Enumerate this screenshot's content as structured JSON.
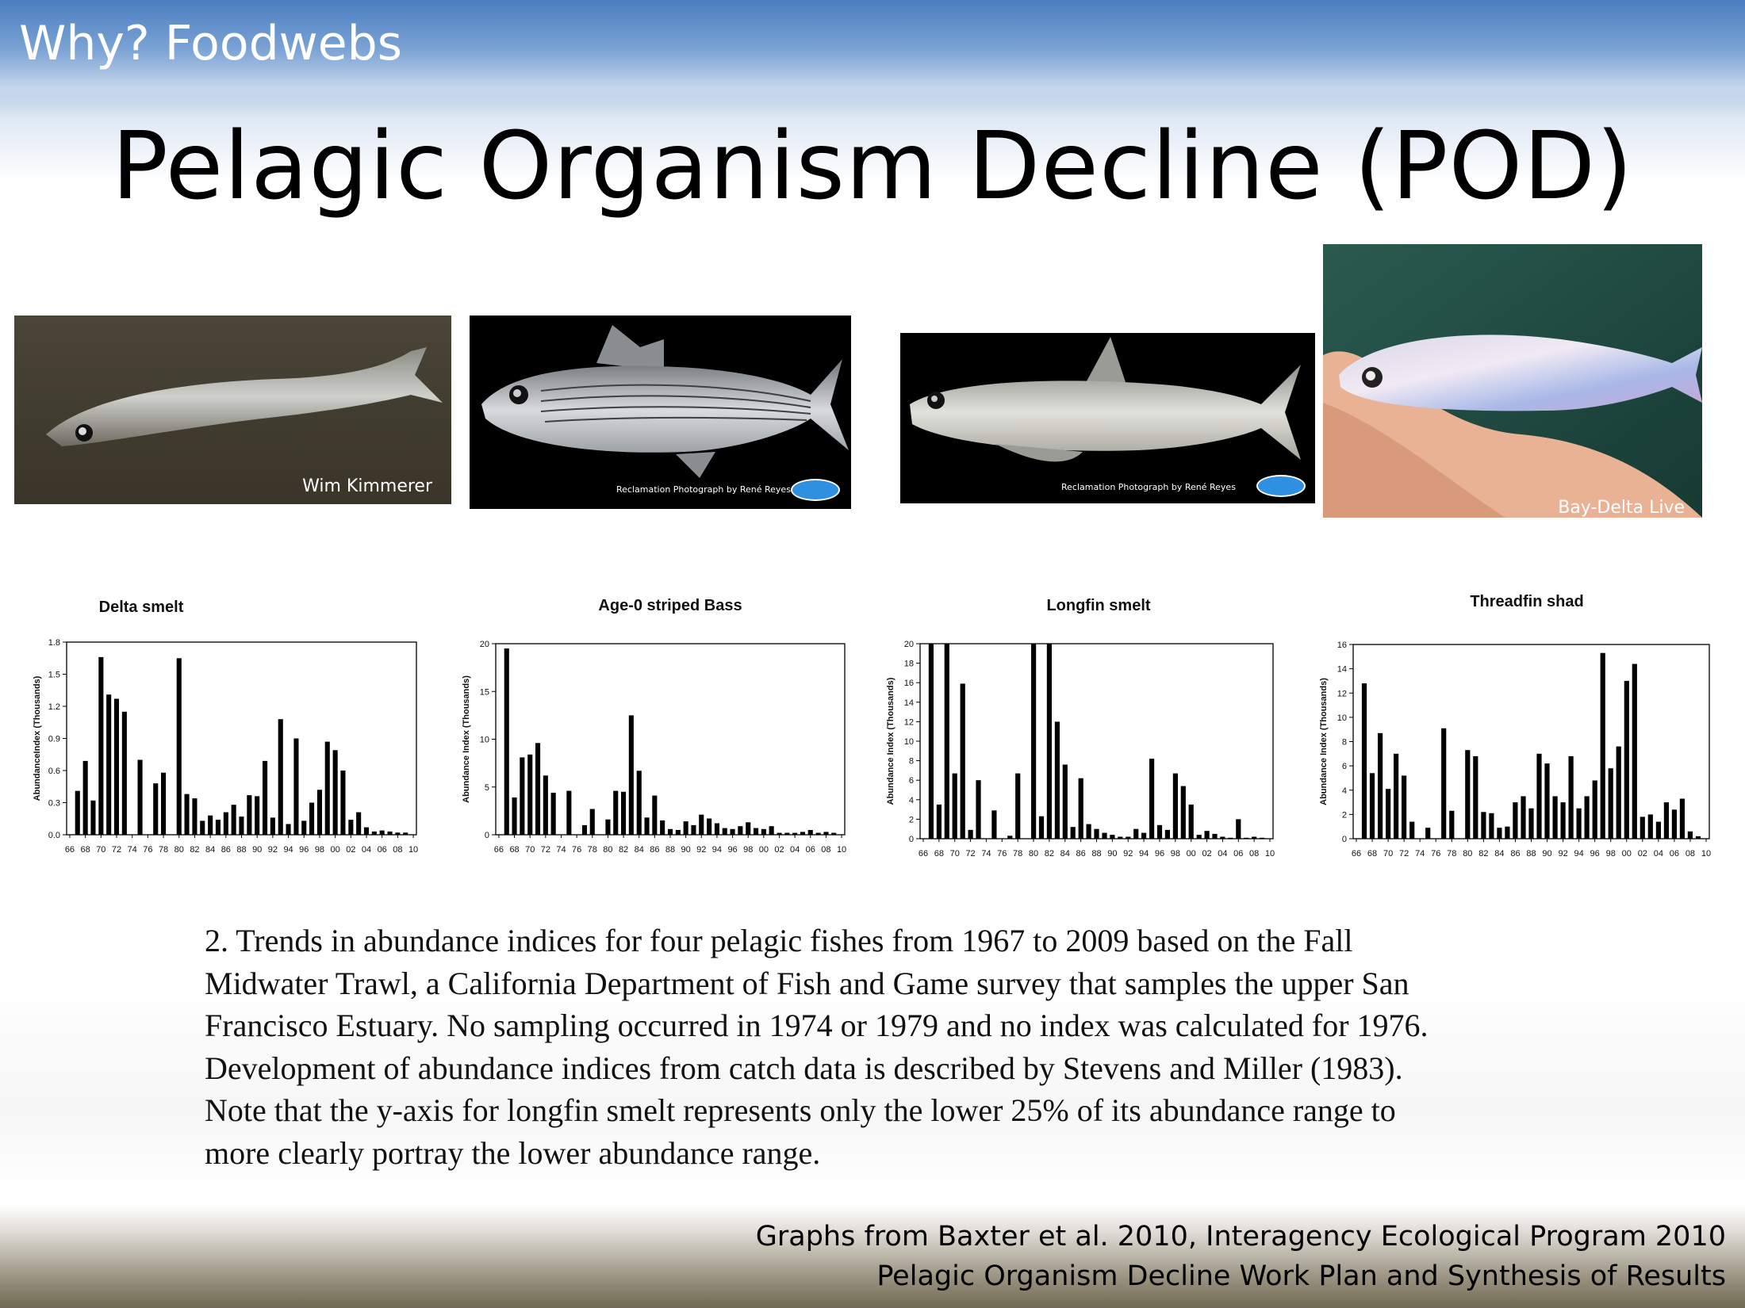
{
  "slide": {
    "section_title": "Why? Foodwebs",
    "main_title": "Pelagic Organism Decline (POD)"
  },
  "photos": [
    {
      "name": "delta-smelt-photo",
      "credit": "Wim Kimmerer",
      "background": "#3f3a30"
    },
    {
      "name": "striped-bass-photo",
      "credit": "Reclamation Photograph by René Reyes",
      "background": "#000000"
    },
    {
      "name": "longfin-smelt-photo",
      "credit": "Reclamation Photograph by René Reyes",
      "background": "#000000"
    },
    {
      "name": "threadfin-shad-photo",
      "credit": "Bay-Delta Live",
      "background": "#1e4a40"
    }
  ],
  "chart_data": [
    {
      "type": "bar",
      "title": "Delta smelt",
      "ylabel": "AbundanceIndex (Thousands)",
      "ylim": [
        0,
        1.8
      ],
      "yticks": [
        0.0,
        0.3,
        0.6,
        0.9,
        1.2,
        1.5,
        1.8
      ],
      "ytick_labels": [
        "0.0",
        "0.3",
        "0.6",
        "0.9",
        "1.2",
        "1.5",
        "1.8"
      ],
      "xtick_labels": [
        "66",
        "68",
        "70",
        "72",
        "74",
        "76",
        "78",
        "80",
        "82",
        "84",
        "86",
        "88",
        "90",
        "92",
        "94",
        "96",
        "98",
        "00",
        "02",
        "04",
        "06",
        "08",
        "10"
      ],
      "x": [
        1967,
        1968,
        1969,
        1970,
        1971,
        1972,
        1973,
        1974,
        1975,
        1976,
        1977,
        1978,
        1979,
        1980,
        1981,
        1982,
        1983,
        1984,
        1985,
        1986,
        1987,
        1988,
        1989,
        1990,
        1991,
        1992,
        1993,
        1994,
        1995,
        1996,
        1997,
        1998,
        1999,
        2000,
        2001,
        2002,
        2003,
        2004,
        2005,
        2006,
        2007,
        2008,
        2009
      ],
      "values": [
        0.41,
        0.69,
        0.32,
        1.66,
        1.31,
        1.27,
        1.15,
        0,
        0.7,
        0,
        0.48,
        0.58,
        0,
        1.65,
        0.38,
        0.34,
        0.13,
        0.18,
        0.14,
        0.21,
        0.28,
        0.17,
        0.37,
        0.36,
        0.69,
        0.16,
        1.08,
        0.1,
        0.9,
        0.13,
        0.3,
        0.42,
        0.87,
        0.79,
        0.6,
        0.14,
        0.21,
        0.07,
        0.03,
        0.04,
        0.03,
        0.02,
        0.02
      ]
    },
    {
      "type": "bar",
      "title": "Age-0 striped Bass",
      "ylabel": "Abundance Index (Thousands)",
      "ylim": [
        0,
        20
      ],
      "yticks": [
        0,
        5,
        10,
        15,
        20
      ],
      "ytick_labels": [
        "0",
        "5",
        "10",
        "15",
        "20"
      ],
      "xtick_labels": [
        "66",
        "68",
        "70",
        "72",
        "74",
        "76",
        "78",
        "80",
        "82",
        "84",
        "86",
        "88",
        "90",
        "92",
        "94",
        "96",
        "98",
        "00",
        "02",
        "04",
        "06",
        "08",
        "10"
      ],
      "x": [
        1967,
        1968,
        1969,
        1970,
        1971,
        1972,
        1973,
        1974,
        1975,
        1976,
        1977,
        1978,
        1979,
        1980,
        1981,
        1982,
        1983,
        1984,
        1985,
        1986,
        1987,
        1988,
        1989,
        1990,
        1991,
        1992,
        1993,
        1994,
        1995,
        1996,
        1997,
        1998,
        1999,
        2000,
        2001,
        2002,
        2003,
        2004,
        2005,
        2006,
        2007,
        2008,
        2009
      ],
      "values": [
        19.5,
        3.9,
        8.1,
        8.4,
        9.6,
        6.2,
        4.4,
        0,
        4.6,
        0,
        1.0,
        2.7,
        0,
        1.6,
        4.6,
        4.5,
        12.5,
        6.7,
        1.8,
        4.1,
        1.5,
        0.6,
        0.5,
        1.4,
        1.0,
        2.1,
        1.7,
        1.2,
        0.7,
        0.6,
        0.9,
        1.3,
        0.7,
        0.6,
        0.9,
        0.2,
        0.2,
        0.2,
        0.3,
        0.5,
        0.2,
        0.3,
        0.2
      ]
    },
    {
      "type": "bar",
      "title": "Longfin smelt",
      "ylabel": "Abundance Index (Thousands)",
      "ylim": [
        0,
        20
      ],
      "yticks": [
        0,
        2,
        4,
        6,
        8,
        10,
        12,
        14,
        16,
        18,
        20
      ],
      "ytick_labels": [
        "0",
        "2",
        "4",
        "6",
        "8",
        "10",
        "12",
        "14",
        "16",
        "18",
        "20"
      ],
      "xtick_labels": [
        "66",
        "68",
        "70",
        "72",
        "74",
        "76",
        "78",
        "80",
        "82",
        "84",
        "86",
        "88",
        "90",
        "92",
        "94",
        "96",
        "98",
        "00",
        "02",
        "04",
        "06",
        "08",
        "10"
      ],
      "x": [
        1967,
        1968,
        1969,
        1970,
        1971,
        1972,
        1973,
        1974,
        1975,
        1976,
        1977,
        1978,
        1979,
        1980,
        1981,
        1982,
        1983,
        1984,
        1985,
        1986,
        1987,
        1988,
        1989,
        1990,
        1991,
        1992,
        1993,
        1994,
        1995,
        1996,
        1997,
        1998,
        1999,
        2000,
        2001,
        2002,
        2003,
        2004,
        2005,
        2006,
        2007,
        2008,
        2009
      ],
      "values": [
        20,
        3.5,
        20,
        6.7,
        15.9,
        0.9,
        6.0,
        0,
        2.9,
        0,
        0.3,
        6.7,
        0,
        20,
        2.3,
        20,
        12.0,
        7.6,
        1.2,
        6.2,
        1.5,
        1.0,
        0.6,
        0.4,
        0.2,
        0.2,
        1.0,
        0.6,
        8.2,
        1.4,
        0.9,
        6.7,
        5.4,
        3.5,
        0.4,
        0.8,
        0.5,
        0.2,
        0.1,
        2.0,
        0.1,
        0.2,
        0.1
      ]
    },
    {
      "type": "bar",
      "title": "Threadfin shad",
      "ylabel": "Abundance Index (Thousands)",
      "ylim": [
        0,
        16
      ],
      "yticks": [
        0,
        2,
        4,
        6,
        8,
        10,
        12,
        14,
        16
      ],
      "ytick_labels": [
        "0",
        "2",
        "4",
        "6",
        "8",
        "10",
        "12",
        "14",
        "16"
      ],
      "xtick_labels": [
        "66",
        "68",
        "70",
        "72",
        "74",
        "76",
        "78",
        "80",
        "82",
        "84",
        "86",
        "88",
        "90",
        "92",
        "94",
        "96",
        "98",
        "00",
        "02",
        "04",
        "06",
        "08",
        "10"
      ],
      "x": [
        1967,
        1968,
        1969,
        1970,
        1971,
        1972,
        1973,
        1974,
        1975,
        1976,
        1977,
        1978,
        1979,
        1980,
        1981,
        1982,
        1983,
        1984,
        1985,
        1986,
        1987,
        1988,
        1989,
        1990,
        1991,
        1992,
        1993,
        1994,
        1995,
        1996,
        1997,
        1998,
        1999,
        2000,
        2001,
        2002,
        2003,
        2004,
        2005,
        2006,
        2007,
        2008,
        2009
      ],
      "values": [
        12.8,
        5.4,
        8.7,
        4.1,
        7.0,
        5.2,
        1.4,
        0,
        0.9,
        0,
        9.1,
        2.3,
        0,
        7.3,
        6.8,
        2.2,
        2.1,
        0.9,
        1.0,
        3.0,
        3.5,
        2.5,
        7.0,
        6.2,
        3.5,
        3.0,
        6.8,
        2.5,
        3.5,
        4.8,
        15.3,
        5.8,
        7.6,
        13.0,
        14.4,
        1.8,
        2.0,
        1.4,
        3.0,
        2.4,
        3.3,
        0.6,
        0.2
      ]
    }
  ],
  "caption": {
    "lines": [
      "2.  Trends in abundance indices for four pelagic fishes from 1967 to 2009 based on the Fall",
      "Midwater Trawl, a California Department of Fish and Game survey that samples the upper San",
      "Francisco Estuary. No sampling occurred in 1974 or 1979 and no index was calculated for 1976.",
      "Development of abundance indices from catch data is described by Stevens and Miller (1983).",
      "Note that the y-axis for longfin smelt represents only the lower 25% of its abundance range to",
      "more clearly portray the lower abundance range."
    ]
  },
  "footer": {
    "line1": "Graphs from Baxter et al. 2010, Interagency Ecological Program 2010",
    "line2": "Pelagic Organism Decline Work Plan and Synthesis of Results"
  }
}
